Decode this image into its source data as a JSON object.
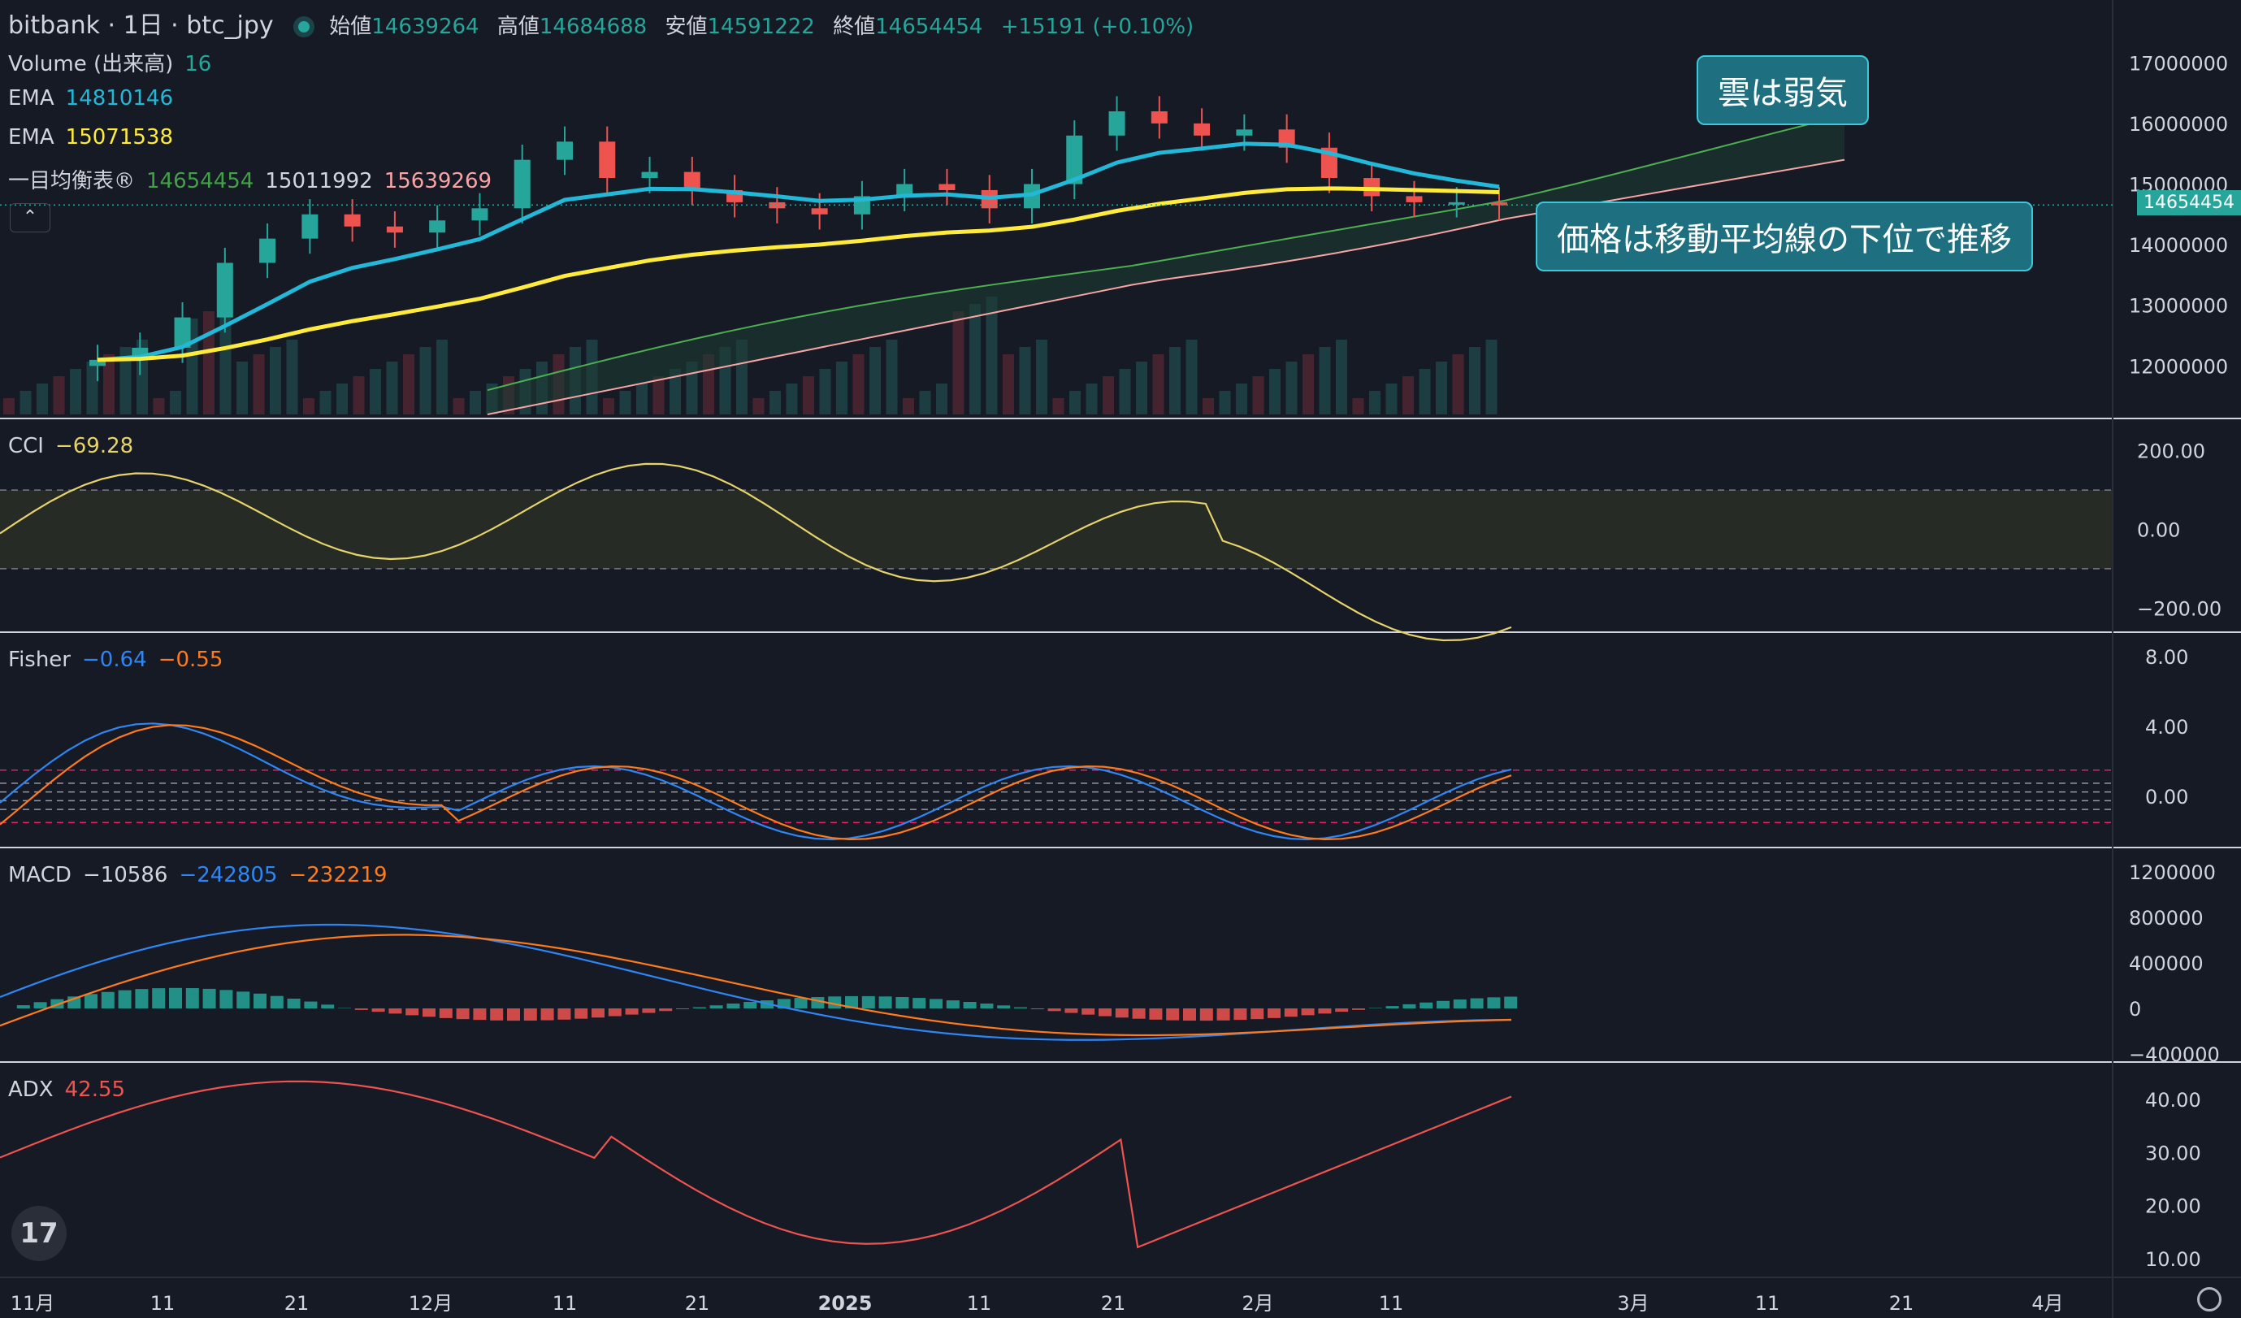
{
  "header": {
    "symbol": "bitbank · 1日 · btc_jpy",
    "open_label": "始値",
    "open": "14639264",
    "high_label": "高値",
    "high": "14684688",
    "low_label": "安値",
    "low": "14591222",
    "close_label": "終値",
    "close": "14654454",
    "change": "+15191 (+0.10%)"
  },
  "legend": {
    "volume_label": "Volume (出来高)",
    "volume": "16",
    "ema1_label": "EMA",
    "ema1": "14810146",
    "ema2_label": "EMA",
    "ema2": "15071538",
    "ichimoku_label": "一目均衡表®",
    "ichimoku_v1": "14654454",
    "ichimoku_v2": "15011992",
    "ichimoku_v3": "15639269"
  },
  "indicators": {
    "cci_label": "CCI",
    "cci_value": "−69.28",
    "fisher_label": "Fisher",
    "fisher_v1": "−0.64",
    "fisher_v2": "−0.55",
    "macd_label": "MACD",
    "macd_v1": "−10586",
    "macd_v2": "−242805",
    "macd_v3": "−232219",
    "adx_label": "ADX",
    "adx_value": "42.55"
  },
  "annotations": {
    "cloud": "雲は弱気",
    "price": "価格は移動平均線の下位で推移"
  },
  "price_tag": "14654454",
  "colors": {
    "up": "#26a69a",
    "down": "#ef5350",
    "ema_fast": "#22b8d8",
    "ema_slow": "#ffeb3b",
    "bg": "#161a25"
  },
  "chart_data": {
    "type": "candlestick",
    "x_labels": [
      "11月",
      "11",
      "21",
      "12月",
      "11",
      "21",
      "2025",
      "11",
      "21",
      "2月",
      "11",
      "3月",
      "11",
      "21",
      "4月"
    ],
    "price_axis": {
      "ticks": [
        12000000,
        13000000,
        14000000,
        15000000,
        16000000,
        17000000
      ],
      "range": [
        11200000,
        17500000
      ]
    },
    "close_series_approx": [
      12100000,
      12300000,
      12800000,
      13700000,
      14100000,
      14500000,
      14300000,
      14200000,
      14400000,
      14600000,
      15400000,
      15700000,
      15100000,
      15200000,
      14900000,
      14700000,
      14600000,
      14500000,
      14800000,
      15000000,
      14900000,
      14600000,
      15000000,
      15800000,
      16200000,
      16000000,
      15800000,
      15900000,
      15600000,
      15100000,
      14800000,
      14700000,
      14700000,
      14650000
    ],
    "cci": {
      "ticks": [
        "200.00",
        "0.00",
        "−200.00"
      ]
    },
    "fisher": {
      "ticks": [
        "8.00",
        "4.00",
        "0.00"
      ]
    },
    "macd": {
      "ticks": [
        "1200000",
        "800000",
        "400000",
        "0",
        "−400000"
      ]
    },
    "adx": {
      "ticks": [
        "40.00",
        "30.00",
        "20.00",
        "10.00"
      ]
    }
  }
}
